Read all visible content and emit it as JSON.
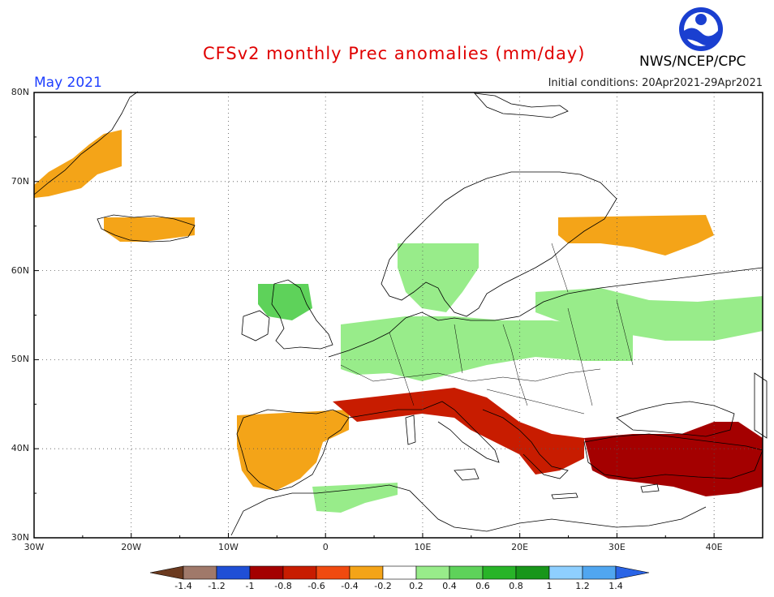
{
  "header": {
    "title": "CFSv2 monthly Prec anomalies (mm/day)",
    "agency": "NWS/NCEP/CPC",
    "month": "May 2021",
    "initial_conditions": "Initial conditions: 20Apr2021-29Apr2021"
  },
  "axes": {
    "lat_labels": [
      "80N",
      "70N",
      "60N",
      "50N",
      "40N",
      "30N"
    ],
    "lon_labels": [
      "30W",
      "20W",
      "10W",
      "0",
      "10E",
      "20E",
      "30E",
      "40E"
    ]
  },
  "colorbar": {
    "labels": [
      "-1.4",
      "-1.2",
      "-1",
      "-0.8",
      "-0.6",
      "-0.4",
      "-0.2",
      "0.2",
      "0.4",
      "0.6",
      "0.8",
      "1",
      "1.2",
      "1.4"
    ],
    "colors": [
      "#6b3a1f",
      "#a0796a",
      "#1f4fd6",
      "#a40000",
      "#c81c00",
      "#f04a10",
      "#f4a418",
      "#ffffff",
      "#98ec8a",
      "#5ed25a",
      "#28b428",
      "#18961a",
      "#8ecfff",
      "#50a6f0",
      "#2a64e6"
    ],
    "ocean_color": "#ffffff",
    "land_outline_color": "#000000"
  },
  "map_data": {
    "projection": "lat-lon",
    "lat_range": [
      30,
      80
    ],
    "lon_range": [
      -30,
      45
    ],
    "anomaly_regions": [
      {
        "name": "iceland",
        "category": "dry",
        "color": "#f4a418"
      },
      {
        "name": "greenland-coast",
        "category": "dry",
        "color": "#f4a418"
      },
      {
        "name": "iberia",
        "category": "dry",
        "color": "#f4a418"
      },
      {
        "name": "italy-balkans",
        "category": "very-dry",
        "color": "#c81c00"
      },
      {
        "name": "turkey",
        "category": "very-dry",
        "color": "#a40000"
      },
      {
        "name": "russia-north",
        "category": "dry",
        "color": "#f4a418"
      },
      {
        "name": "central-europe",
        "category": "wet",
        "color": "#98ec8a"
      },
      {
        "name": "scotland",
        "category": "wet",
        "color": "#5ed25a"
      },
      {
        "name": "scandinavia",
        "category": "wet",
        "color": "#98ec8a"
      },
      {
        "name": "eastern-europe",
        "category": "wet",
        "color": "#98ec8a"
      },
      {
        "name": "north-africa",
        "category": "wet",
        "color": "#98ec8a"
      }
    ]
  }
}
